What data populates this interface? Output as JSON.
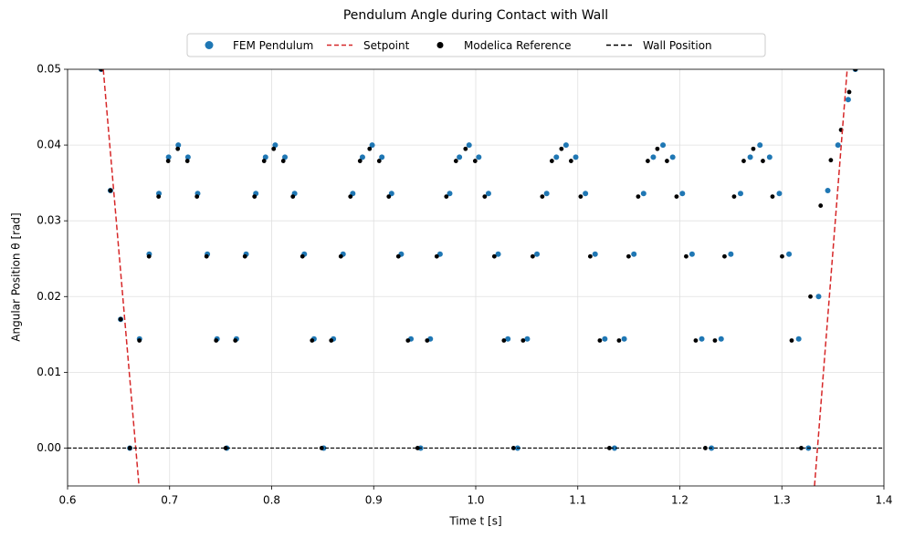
{
  "chart_data": {
    "type": "scatter",
    "title": "Pendulum Angle during Contact with Wall",
    "x_label": "Time t  [s]",
    "y_label": "Angular Position θ  [rad]",
    "xlim": [
      0.6,
      1.4
    ],
    "ylim": [
      -0.005,
      0.05
    ],
    "xticks": [
      0.6,
      0.7,
      0.8,
      0.9,
      {
        "value": 1,
        "label": "1.0"
      },
      1.1,
      1.2,
      1.3,
      1.4
    ],
    "yticks": [
      {
        "value": 0,
        "label": "0.00"
      },
      {
        "value": 0.01,
        "label": "0.01"
      },
      {
        "value": 0.02,
        "label": "0.02"
      },
      {
        "value": 0.03,
        "label": "0.03"
      },
      {
        "value": 0.04,
        "label": "0.04"
      },
      {
        "value": 0.05,
        "label": "0.05"
      }
    ],
    "grid": true,
    "legend": "top",
    "series": [
      {
        "name": "FEM Pendulum",
        "type": "scatter",
        "color": "#1f77b4",
        "x": [
          0.633,
          0.642,
          0.652,
          0.661,
          0.6705,
          0.68,
          0.6895,
          0.699,
          0.7085,
          0.718,
          0.7275,
          0.737,
          0.7465,
          0.756,
          0.7655,
          0.775,
          0.7845,
          0.794,
          0.8035,
          0.813,
          0.8225,
          0.832,
          0.8415,
          0.851,
          0.8605,
          0.87,
          0.8795,
          0.889,
          0.8985,
          0.908,
          0.9175,
          0.927,
          0.9365,
          0.946,
          0.9555,
          0.965,
          0.9745,
          0.984,
          0.9935,
          1.003,
          1.0125,
          1.022,
          1.0315,
          1.041,
          1.0505,
          1.06,
          1.0695,
          1.079,
          1.0885,
          1.098,
          1.1075,
          1.117,
          1.1265,
          1.136,
          1.1455,
          1.155,
          1.1645,
          1.174,
          1.1835,
          1.193,
          1.2025,
          1.212,
          1.2215,
          1.231,
          1.2405,
          1.25,
          1.2595,
          1.269,
          1.2785,
          1.288,
          1.2975,
          1.307,
          1.3165,
          1.326,
          1.336,
          1.345,
          1.355,
          1.365,
          1.372
        ],
        "values": [
          0.05,
          0.034,
          0.017,
          0,
          0.0144,
          0.0256,
          0.0336,
          0.0384,
          0.04,
          0.0384,
          0.0336,
          0.0256,
          0.0144,
          0,
          0.0144,
          0.0256,
          0.0336,
          0.0384,
          0.04,
          0.0384,
          0.0336,
          0.0256,
          0.0144,
          0,
          0.0144,
          0.0256,
          0.0336,
          0.0384,
          0.04,
          0.0384,
          0.0336,
          0.0256,
          0.0144,
          0,
          0.0144,
          0.0256,
          0.0336,
          0.0384,
          0.04,
          0.0384,
          0.0336,
          0.0256,
          0.0144,
          0,
          0.0144,
          0.0256,
          0.0336,
          0.0384,
          0.04,
          0.0384,
          0.0336,
          0.0256,
          0.0144,
          0,
          0.0144,
          0.0256,
          0.0336,
          0.0384,
          0.04,
          0.0384,
          0.0336,
          0.0256,
          0.0144,
          0,
          0.0144,
          0.0256,
          0.0336,
          0.0384,
          0.04,
          0.0384,
          0.0336,
          0.0256,
          0.0144,
          0,
          0.02,
          0.034,
          0.04,
          0.046,
          0.05
        ]
      },
      {
        "name": "Setpoint",
        "type": "line",
        "dashed": true,
        "color": "#d62728",
        "x": [
          0.635,
          0.67,
          null,
          1.332,
          1.364
        ],
        "values": [
          0.05,
          -0.005,
          null,
          -0.005,
          0.05
        ]
      },
      {
        "name": "Modelica Reference",
        "type": "scatter",
        "color": "#000000",
        "x": [
          0.633,
          0.642,
          0.652,
          0.661,
          0.6704,
          0.6798,
          0.6892,
          0.6986,
          0.708,
          0.7174,
          0.7268,
          0.7362,
          0.7456,
          0.755,
          0.7644,
          0.7738,
          0.7832,
          0.7926,
          0.802,
          0.8114,
          0.8208,
          0.8302,
          0.8396,
          0.849,
          0.8584,
          0.8678,
          0.8772,
          0.8866,
          0.896,
          0.9054,
          0.9148,
          0.9242,
          0.9336,
          0.943,
          0.9524,
          0.9618,
          0.9712,
          0.9806,
          0.99,
          0.9994,
          1.0088,
          1.0182,
          1.0276,
          1.037,
          1.0464,
          1.0558,
          1.0652,
          1.0746,
          1.084,
          1.0934,
          1.1028,
          1.1122,
          1.1216,
          1.131,
          1.1404,
          1.1498,
          1.1592,
          1.1686,
          1.178,
          1.1874,
          1.1968,
          1.2062,
          1.2156,
          1.225,
          1.2344,
          1.2438,
          1.2532,
          1.2626,
          1.272,
          1.2814,
          1.2908,
          1.3002,
          1.3096,
          1.319,
          1.328,
          1.338,
          1.348,
          1.358,
          1.366,
          1.372
        ],
        "values": [
          0.05,
          0.034,
          0.017,
          0,
          0.0142,
          0.0253,
          0.0332,
          0.0379,
          0.0395,
          0.0379,
          0.0332,
          0.0253,
          0.0142,
          0,
          0.0142,
          0.0253,
          0.0332,
          0.0379,
          0.0395,
          0.0379,
          0.0332,
          0.0253,
          0.0142,
          0,
          0.0142,
          0.0253,
          0.0332,
          0.0379,
          0.0395,
          0.0379,
          0.0332,
          0.0253,
          0.0142,
          0,
          0.0142,
          0.0253,
          0.0332,
          0.0379,
          0.0395,
          0.0379,
          0.0332,
          0.0253,
          0.0142,
          0,
          0.0142,
          0.0253,
          0.0332,
          0.0379,
          0.0395,
          0.0379,
          0.0332,
          0.0253,
          0.0142,
          0,
          0.0142,
          0.0253,
          0.0332,
          0.0379,
          0.0395,
          0.0379,
          0.0332,
          0.0253,
          0.0142,
          0,
          0.0142,
          0.0253,
          0.0332,
          0.0379,
          0.0395,
          0.0379,
          0.0332,
          0.0253,
          0.0142,
          0,
          0.02,
          0.032,
          0.038,
          0.042,
          0.047,
          0.05
        ]
      },
      {
        "name": "Wall Position",
        "type": "line",
        "dashed": true,
        "color": "#000000",
        "x": [
          0.6,
          1.4
        ],
        "values": [
          0,
          0
        ]
      }
    ]
  }
}
